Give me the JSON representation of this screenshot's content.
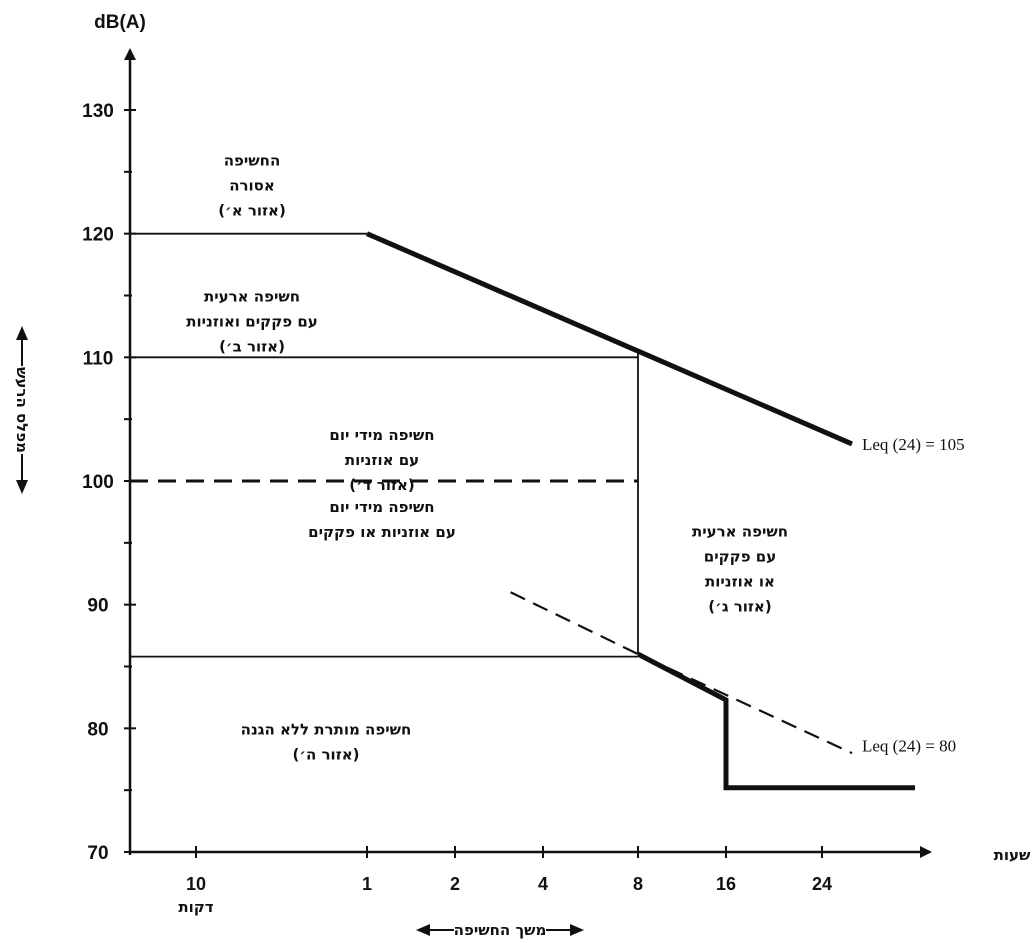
{
  "chart_data": {
    "type": "line",
    "ylabel": "dB(A)",
    "y_axis_caption": "מפלס הרעש",
    "xlabel": "שעות",
    "x_axis_caption": "משך החשיפה",
    "y_ticks": [
      "70",
      "80",
      "90",
      "100",
      "110",
      "120",
      "130"
    ],
    "x_ticks": [
      {
        "label": "10",
        "sub": "דקות",
        "hours": 0.1667
      },
      {
        "label": "1",
        "sub": "",
        "hours": 1
      },
      {
        "label": "2",
        "sub": "",
        "hours": 2
      },
      {
        "label": "4",
        "sub": "",
        "hours": 4
      },
      {
        "label": "8",
        "sub": "",
        "hours": 8
      },
      {
        "label": "16",
        "sub": "",
        "hours": 16
      },
      {
        "label": "24",
        "sub": "",
        "hours": 24
      }
    ],
    "ylim": [
      70,
      135
    ],
    "series": [
      {
        "name": "Leq (24) = 105",
        "style": "thick",
        "points": [
          [
            1,
            120
          ],
          [
            8,
            110.5
          ],
          [
            32,
            103
          ]
        ]
      },
      {
        "name": "Leq (24) = 80",
        "style": "dashed",
        "points": [
          [
            3.1,
            91
          ],
          [
            8,
            86
          ],
          [
            32,
            78
          ]
        ]
      },
      {
        "name": "",
        "style": "thick",
        "points": [
          [
            8,
            86
          ],
          [
            16,
            82.3
          ],
          [
            16,
            75.2
          ],
          [
            48,
            75.2
          ]
        ]
      }
    ],
    "boundaries": [
      {
        "kind": "solid",
        "points": [
          [
            0.06,
            120
          ],
          [
            1,
            120
          ]
        ]
      },
      {
        "kind": "solid",
        "points": [
          [
            0.06,
            110
          ],
          [
            8,
            110
          ]
        ]
      },
      {
        "kind": "solid",
        "points": [
          [
            8,
            110.5
          ],
          [
            8,
            86
          ]
        ]
      },
      {
        "kind": "solid",
        "points": [
          [
            0.06,
            85.8
          ],
          [
            8,
            85.8
          ]
        ]
      },
      {
        "kind": "dashed",
        "points": [
          [
            0.06,
            100
          ],
          [
            8,
            100
          ]
        ]
      }
    ],
    "zones": [
      {
        "id": "a",
        "lines": [
          "החשיפה",
          "אסורה",
          "(אזור א׳)"
        ],
        "anchor": [
          0.3,
          125.5
        ]
      },
      {
        "id": "b",
        "lines": [
          "חשיפה ארעית",
          "עם פקקים ואוזניות",
          "(אזור ב׳)"
        ],
        "anchor": [
          0.3,
          114.5
        ]
      },
      {
        "id": "d-top",
        "lines": [
          "חשיפה מידי יום",
          "עם אוזניות",
          "(אזור ד׳)"
        ],
        "anchor": [
          1.2,
          103.3
        ]
      },
      {
        "id": "d-bottom",
        "lines": [
          "חשיפה מידי יום",
          "עם אוזניות או פקקים"
        ],
        "anchor": [
          1.2,
          97.5
        ]
      },
      {
        "id": "c",
        "lines": [
          "חשיפה ארעית",
          "עם פקקים",
          "או אוזניות",
          "(אזור ג׳)"
        ],
        "anchor": [
          18,
          95.5
        ]
      },
      {
        "id": "e",
        "lines": [
          "חשיפה מותרת ללא הגנה",
          "(אזור ה׳)"
        ],
        "anchor": [
          0.7,
          79.5
        ]
      }
    ],
    "annotations": [
      {
        "text": "Leq (24) = 105",
        "anchor": [
          34,
          103
        ]
      },
      {
        "text": "Leq (24) = 80",
        "anchor": [
          34,
          78.6
        ]
      }
    ]
  }
}
